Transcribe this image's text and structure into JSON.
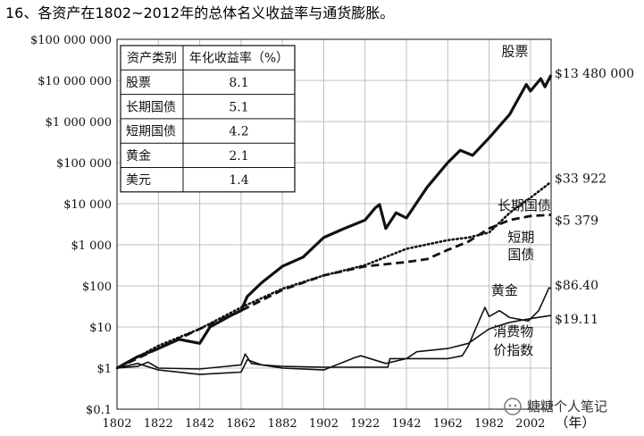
{
  "figure_title": "16、各资产在1802~2012年的总体名义收益率与通货膨胀。",
  "watermark": "糖糖个人笔记",
  "colors": {
    "line": "#111111",
    "grid": "#bfbfbf",
    "background": "#ffffff"
  },
  "chart_data": {
    "type": "line",
    "title": "16、各资产在1802~2012年的总体名义收益率与通货膨胀。",
    "x_unit_label": "（年）",
    "y_scale": "log",
    "xlim": [
      1802,
      2012
    ],
    "ylim": [
      0.1,
      100000000
    ],
    "grid": true,
    "x_ticks": [
      "1802",
      "1822",
      "1842",
      "1862",
      "1882",
      "1902",
      "1922",
      "1942",
      "1962",
      "1982",
      "2002"
    ],
    "y_ticks": [
      "$100 000 000",
      "$10 000 000",
      "$1 000 000",
      "$100 000",
      "$10 000",
      "$1 000",
      "$100",
      "$10",
      "$1",
      "$0.1"
    ],
    "table": {
      "headers": [
        "资产类别",
        "年化收益率（%）"
      ],
      "rows": [
        [
          "股票",
          "8.1"
        ],
        [
          "长期国债",
          "5.1"
        ],
        [
          "短期国债",
          "4.2"
        ],
        [
          "黄金",
          "2.1"
        ],
        [
          "美元",
          "1.4"
        ]
      ]
    },
    "series": [
      {
        "name": "股票",
        "end_label": "$13 480 000",
        "style": "solid-thick",
        "points": [
          [
            1802,
            1
          ],
          [
            1812,
            1.9
          ],
          [
            1822,
            3
          ],
          [
            1832,
            5
          ],
          [
            1842,
            4
          ],
          [
            1847,
            10
          ],
          [
            1857,
            19
          ],
          [
            1862,
            25
          ],
          [
            1865,
            55
          ],
          [
            1872,
            120
          ],
          [
            1882,
            300
          ],
          [
            1892,
            500
          ],
          [
            1902,
            1500
          ],
          [
            1912,
            2500
          ],
          [
            1922,
            4000
          ],
          [
            1927,
            8000
          ],
          [
            1929,
            9500
          ],
          [
            1932,
            2500
          ],
          [
            1937,
            6000
          ],
          [
            1942,
            4500
          ],
          [
            1952,
            25000
          ],
          [
            1962,
            100000
          ],
          [
            1968,
            200000
          ],
          [
            1974,
            150000
          ],
          [
            1982,
            400000
          ],
          [
            1992,
            1500000
          ],
          [
            2000,
            8000000
          ],
          [
            2002,
            5500000
          ],
          [
            2007,
            11000000
          ],
          [
            2009,
            7000000
          ],
          [
            2012,
            13480000
          ]
        ]
      },
      {
        "name": "长期国债",
        "end_label": "$33 922",
        "style": "dotted",
        "points": [
          [
            1802,
            1
          ],
          [
            1822,
            3.5
          ],
          [
            1842,
            9
          ],
          [
            1862,
            30
          ],
          [
            1882,
            85
          ],
          [
            1902,
            180
          ],
          [
            1922,
            320
          ],
          [
            1942,
            800
          ],
          [
            1962,
            1300
          ],
          [
            1972,
            1500
          ],
          [
            1982,
            2000
          ],
          [
            1992,
            6000
          ],
          [
            2002,
            14000
          ],
          [
            2012,
            33922
          ]
        ]
      },
      {
        "name": "短期国债",
        "end_label": "$5 379",
        "style": "dashed",
        "points": [
          [
            1802,
            1
          ],
          [
            1822,
            3
          ],
          [
            1842,
            9
          ],
          [
            1862,
            25
          ],
          [
            1882,
            80
          ],
          [
            1902,
            180
          ],
          [
            1922,
            300
          ],
          [
            1942,
            380
          ],
          [
            1952,
            450
          ],
          [
            1962,
            750
          ],
          [
            1972,
            1200
          ],
          [
            1982,
            2500
          ],
          [
            1992,
            4000
          ],
          [
            2002,
            5000
          ],
          [
            2012,
            5379
          ]
        ]
      },
      {
        "name": "黄金",
        "end_label": "$86.40",
        "style": "solid",
        "points": [
          [
            1802,
            1
          ],
          [
            1812,
            1.1
          ],
          [
            1817,
            1.4
          ],
          [
            1822,
            1
          ],
          [
            1842,
            0.95
          ],
          [
            1862,
            1.2
          ],
          [
            1864,
            2.2
          ],
          [
            1867,
            1.3
          ],
          [
            1872,
            1.2
          ],
          [
            1882,
            1.1
          ],
          [
            1902,
            1.05
          ],
          [
            1922,
            1.05
          ],
          [
            1933,
            1.05
          ],
          [
            1934,
            1.7
          ],
          [
            1952,
            1.7
          ],
          [
            1962,
            1.7
          ],
          [
            1969,
            2
          ],
          [
            1972,
            3.5
          ],
          [
            1975,
            8
          ],
          [
            1980,
            30
          ],
          [
            1982,
            18
          ],
          [
            1987,
            25
          ],
          [
            1992,
            17
          ],
          [
            2001,
            14
          ],
          [
            2006,
            25
          ],
          [
            2011,
            90
          ],
          [
            2012,
            86.4
          ]
        ]
      },
      {
        "name": "消费物价指数",
        "end_label": "$19.11",
        "style": "solid",
        "points": [
          [
            1802,
            1
          ],
          [
            1812,
            1.3
          ],
          [
            1822,
            0.9
          ],
          [
            1842,
            0.7
          ],
          [
            1862,
            0.8
          ],
          [
            1865,
            1.6
          ],
          [
            1872,
            1.2
          ],
          [
            1882,
            1
          ],
          [
            1902,
            0.9
          ],
          [
            1917,
            1.8
          ],
          [
            1920,
            2
          ],
          [
            1932,
            1.3
          ],
          [
            1942,
            1.7
          ],
          [
            1947,
            2.5
          ],
          [
            1962,
            3
          ],
          [
            1972,
            4
          ],
          [
            1982,
            9
          ],
          [
            1992,
            13
          ],
          [
            2002,
            16
          ],
          [
            2012,
            19.11
          ]
        ]
      }
    ],
    "labels": [
      {
        "text": "股票",
        "series": "股票"
      },
      {
        "text": "长期国债",
        "series": "长期国债"
      },
      {
        "text": "短期",
        "series": "短期国债"
      },
      {
        "text": "国债",
        "series": "短期国债"
      },
      {
        "text": "黄金",
        "series": "黄金"
      },
      {
        "text": "消费物",
        "series": "消费物价指数"
      },
      {
        "text": "价指数",
        "series": "消费物价指数"
      }
    ]
  }
}
